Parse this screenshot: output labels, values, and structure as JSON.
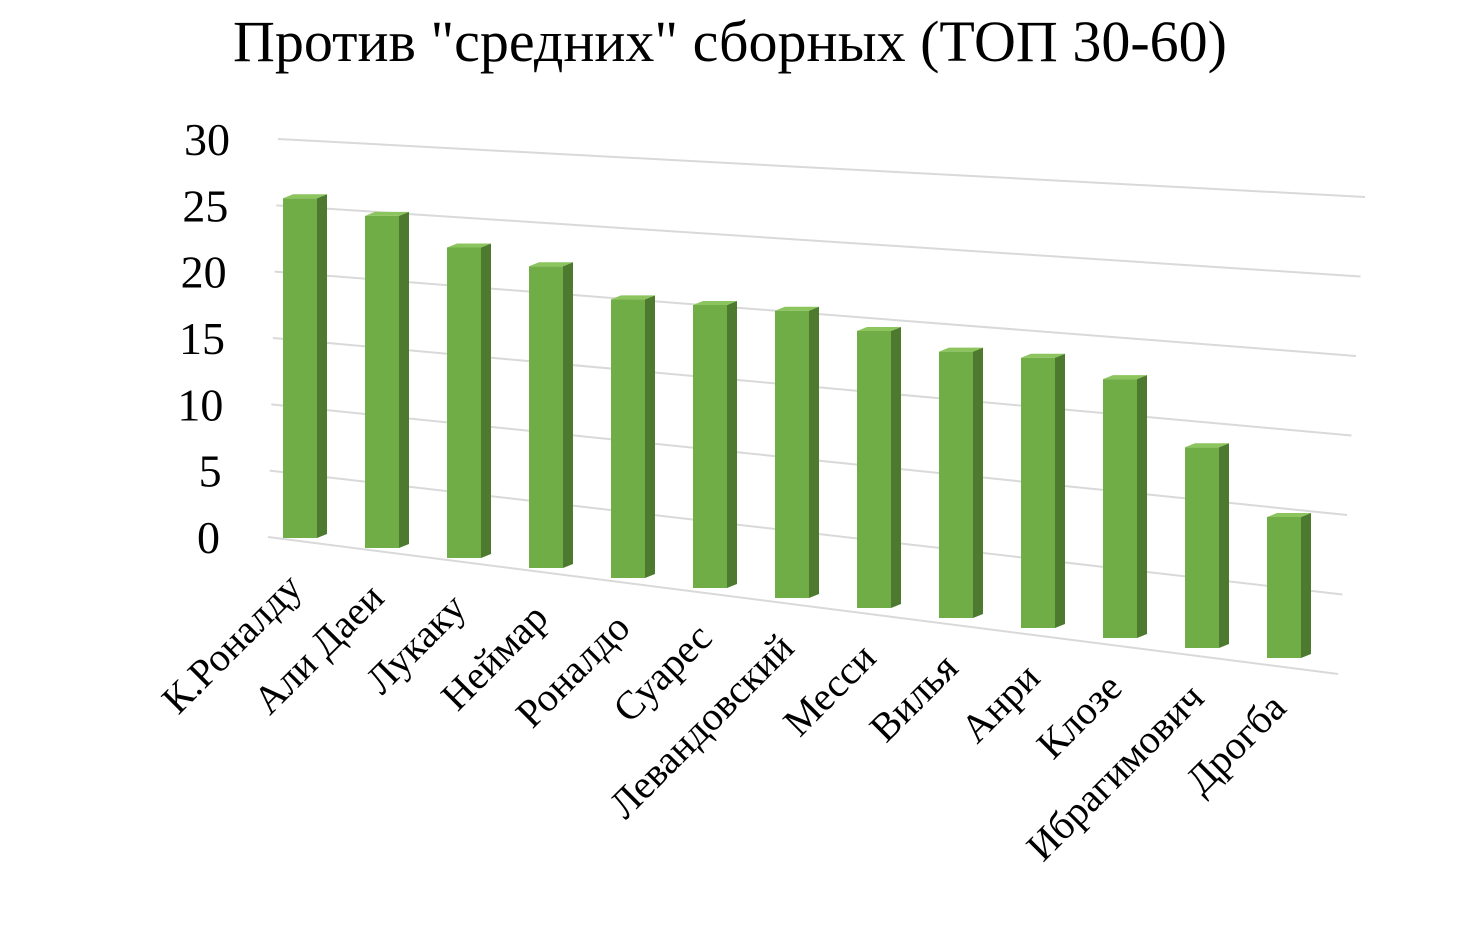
{
  "chart_data": {
    "type": "bar",
    "title": "Против \"средних\" сборных (ТОП 30-60)",
    "categories": [
      "К.Роналду",
      "Али Даеи",
      "Лукаку",
      "Неймар",
      "Роналдо",
      "Суарес",
      "Левандовский",
      "Месси",
      "Вилья",
      "Анри",
      "Клозе",
      "Ибрагимович",
      "Дрогба"
    ],
    "values": [
      26,
      25,
      23,
      22,
      20,
      20,
      20,
      19,
      18,
      18,
      17,
      13,
      9
    ],
    "ylim": [
      0,
      30
    ],
    "yticks": [
      "0",
      "5",
      "10",
      "15",
      "20",
      "25",
      "30"
    ],
    "xlabel": "",
    "ylabel": "",
    "grid": true,
    "legend": "none",
    "style": "3d-column",
    "colors": {
      "bar_front": "#70AD47",
      "bar_side": "#4E7A30",
      "bar_top": "#8CC45E",
      "gridline": "#D9D9D9"
    }
  }
}
